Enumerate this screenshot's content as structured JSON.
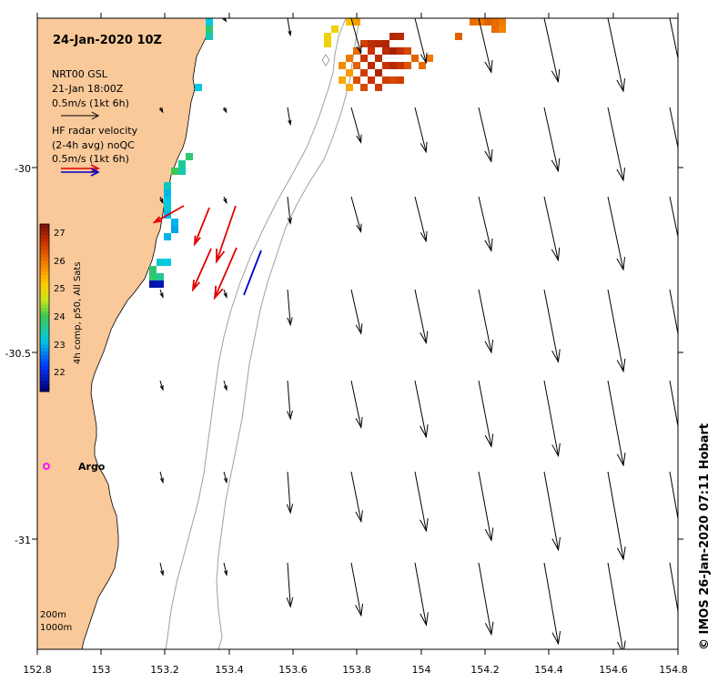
{
  "map": {
    "title": "24-Jan-2020 10Z",
    "credit": "© IMOS 26-Jan-2020 07:11 Hobart",
    "colors": {
      "land": "#f9c99a",
      "ocean": "#ffffff",
      "isobath": "#a0a0a0",
      "model_arrow": "#000000",
      "radar_arrow_red": "#e00000",
      "radar_arrow_blue": "#0000cc",
      "argo": "#ff00ff"
    },
    "x_ticks": [
      "152.8",
      "153",
      "153.2",
      "153.4",
      "153.6",
      "153.8",
      "154",
      "154.2",
      "154.4",
      "154.6",
      "154.8"
    ],
    "y_ticks": [
      "-30",
      "-30.5",
      "-31"
    ],
    "legend": {
      "model_label_1": "NRT00 GSL",
      "model_label_2": "21-Jan 18:00Z",
      "model_scale": "0.5m/s (1kt 6h)",
      "radar_label_1": "HF radar velocity",
      "radar_label_2": "(2-4h avg) noQC",
      "radar_scale": "0.5m/s (1kt 6h)"
    },
    "colorbar": {
      "label": "4h comp, p50, All Sats",
      "min": 21.5,
      "max": 27.4,
      "ticks": [
        "22",
        "23",
        "24",
        "25",
        "26",
        "27"
      ]
    },
    "isobath_labels": [
      "200m",
      "1000m"
    ],
    "argo_label": "Argo"
  }
}
